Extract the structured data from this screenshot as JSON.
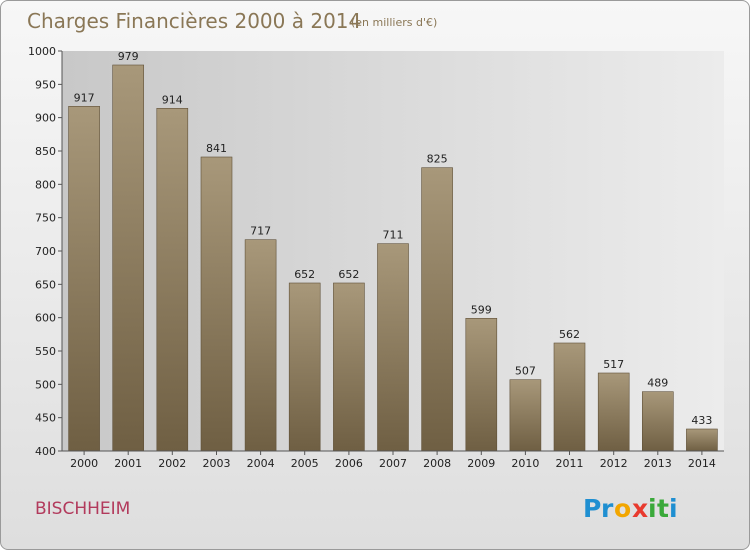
{
  "chart_data": {
    "type": "bar",
    "title": "Charges Financières 2000 à 2014",
    "subtitle": "(en milliers d'€)",
    "categories": [
      "2000",
      "2001",
      "2002",
      "2003",
      "2004",
      "2005",
      "2006",
      "2007",
      "2008",
      "2009",
      "2010",
      "2011",
      "2012",
      "2013",
      "2014"
    ],
    "values": [
      917,
      979,
      914,
      841,
      717,
      652,
      652,
      711,
      825,
      599,
      507,
      562,
      517,
      489,
      433
    ],
    "xlabel": "",
    "ylabel": "",
    "ylim": [
      400,
      1000
    ],
    "yticks": [
      400,
      450,
      500,
      550,
      600,
      650,
      700,
      750,
      800,
      850,
      900,
      950,
      1000
    ],
    "grid": false,
    "data_labels": true,
    "bar_color": "#8b7a5e"
  },
  "footer": {
    "place_name": "BISCHHEIM",
    "logo_text": "Proxiti"
  }
}
